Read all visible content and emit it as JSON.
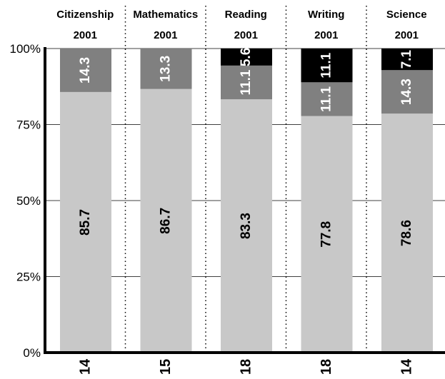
{
  "chart_data": {
    "type": "bar",
    "stacked": true,
    "orientation": "vertical",
    "categories": [
      {
        "name": "Citizenship",
        "year": "2001",
        "n": "14"
      },
      {
        "name": "Mathematics",
        "year": "2001",
        "n": "15"
      },
      {
        "name": "Reading",
        "year": "2001",
        "n": "18"
      },
      {
        "name": "Writing",
        "year": "2001",
        "n": "18"
      },
      {
        "name": "Science",
        "year": "2001",
        "n": "14"
      }
    ],
    "series": [
      {
        "color": "#c8c8c8",
        "text_color": "#000000",
        "values": [
          85.7,
          86.7,
          83.3,
          77.8,
          78.6
        ]
      },
      {
        "color": "#808080",
        "text_color": "#ffffff",
        "values": [
          14.3,
          13.3,
          11.1,
          11.1,
          14.3
        ]
      },
      {
        "color": "#000000",
        "text_color": "#ffffff",
        "values": [
          0,
          0,
          5.6,
          11.1,
          7.1
        ]
      }
    ],
    "yticks": [
      "0%",
      "25%",
      "50%",
      "75%",
      "100%"
    ],
    "ylim": [
      0,
      100
    ],
    "grid": true,
    "legend": "none",
    "title": "",
    "xlabel": "",
    "ylabel": ""
  }
}
